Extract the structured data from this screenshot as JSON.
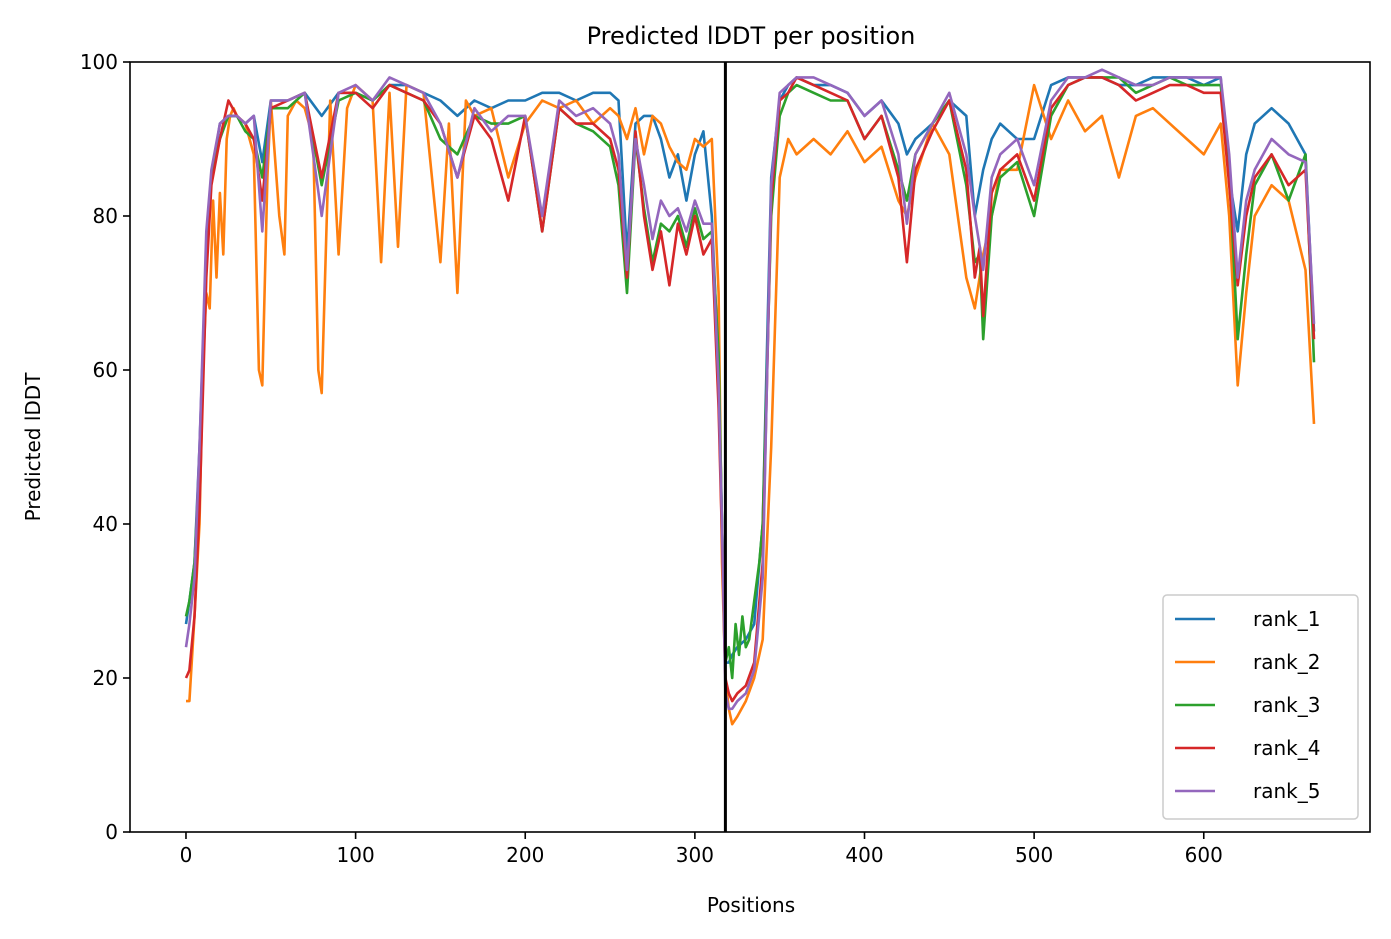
{
  "chart_data": {
    "type": "line",
    "title": "Predicted lDDT per position",
    "xlabel": "Positions",
    "ylabel": "Predicted lDDT",
    "xlim": [
      -33,
      698
    ],
    "ylim": [
      0,
      100
    ],
    "xticks": [
      "0",
      "100",
      "200",
      "300",
      "400",
      "500",
      "600"
    ],
    "yticks": [
      "0",
      "20",
      "40",
      "60",
      "80",
      "100"
    ],
    "vline_x": 318,
    "legend_position": "lower right",
    "series": [
      {
        "name": "rank_1",
        "color": "#1f77b4",
        "x": [
          0,
          2,
          5,
          8,
          12,
          15,
          20,
          25,
          30,
          35,
          40,
          45,
          50,
          60,
          70,
          80,
          90,
          100,
          110,
          120,
          130,
          140,
          150,
          160,
          170,
          180,
          190,
          200,
          210,
          220,
          230,
          240,
          250,
          255,
          260,
          265,
          270,
          275,
          280,
          285,
          290,
          295,
          300,
          305,
          310,
          314,
          316,
          318,
          320,
          322,
          325,
          330,
          335,
          340,
          345,
          350,
          355,
          360,
          370,
          380,
          390,
          400,
          410,
          420,
          425,
          430,
          440,
          450,
          460,
          465,
          470,
          475,
          480,
          490,
          500,
          510,
          520,
          530,
          540,
          550,
          560,
          570,
          580,
          590,
          600,
          610,
          615,
          620,
          625,
          630,
          640,
          650,
          660,
          665
        ],
        "y": [
          27,
          30,
          35,
          50,
          75,
          85,
          92,
          93,
          93,
          92,
          93,
          87,
          95,
          95,
          96,
          93,
          96,
          96,
          95,
          97,
          97,
          96,
          95,
          93,
          95,
          94,
          95,
          95,
          96,
          96,
          95,
          96,
          96,
          95,
          75,
          92,
          93,
          93,
          90,
          85,
          88,
          82,
          88,
          91,
          80,
          60,
          40,
          22,
          22,
          23,
          24,
          25,
          27,
          40,
          85,
          95,
          97,
          98,
          97,
          97,
          96,
          93,
          95,
          92,
          88,
          90,
          92,
          95,
          93,
          80,
          86,
          90,
          92,
          90,
          90,
          97,
          98,
          98,
          98,
          97,
          97,
          98,
          98,
          98,
          97,
          98,
          85,
          78,
          88,
          92,
          94,
          92,
          88,
          65
        ]
      },
      {
        "name": "rank_2",
        "color": "#ff7f0e",
        "x": [
          0,
          2,
          5,
          8,
          10,
          12,
          14,
          16,
          18,
          20,
          22,
          24,
          26,
          28,
          30,
          35,
          40,
          43,
          45,
          48,
          50,
          55,
          58,
          60,
          65,
          70,
          75,
          78,
          80,
          85,
          90,
          95,
          100,
          110,
          115,
          120,
          125,
          130,
          140,
          150,
          155,
          160,
          165,
          170,
          180,
          190,
          200,
          210,
          220,
          230,
          240,
          250,
          255,
          260,
          265,
          270,
          275,
          280,
          285,
          290,
          295,
          300,
          305,
          310,
          314,
          316,
          318,
          320,
          322,
          325,
          330,
          335,
          340,
          345,
          350,
          355,
          360,
          370,
          380,
          390,
          400,
          410,
          420,
          425,
          430,
          440,
          450,
          460,
          465,
          470,
          475,
          480,
          490,
          500,
          510,
          520,
          530,
          540,
          550,
          560,
          570,
          580,
          590,
          600,
          610,
          615,
          620,
          625,
          630,
          640,
          650,
          660,
          665
        ],
        "y": [
          17,
          17,
          28,
          40,
          60,
          70,
          68,
          82,
          72,
          83,
          75,
          90,
          93,
          94,
          93,
          92,
          88,
          60,
          58,
          85,
          95,
          80,
          75,
          93,
          95,
          94,
          90,
          60,
          57,
          95,
          75,
          94,
          97,
          95,
          74,
          96,
          76,
          97,
          96,
          74,
          92,
          70,
          95,
          93,
          94,
          85,
          92,
          95,
          94,
          95,
          92,
          94,
          93,
          90,
          94,
          88,
          93,
          92,
          89,
          87,
          86,
          90,
          89,
          90,
          70,
          35,
          20,
          16,
          14,
          15,
          17,
          20,
          25,
          50,
          85,
          90,
          88,
          90,
          88,
          91,
          87,
          89,
          82,
          80,
          85,
          92,
          88,
          72,
          68,
          75,
          80,
          86,
          86,
          97,
          90,
          95,
          91,
          93,
          85,
          93,
          94,
          92,
          90,
          88,
          92,
          80,
          58,
          70,
          80,
          84,
          82,
          73,
          53
        ]
      },
      {
        "name": "rank_3",
        "color": "#2ca02c",
        "x": [
          0,
          2,
          5,
          8,
          12,
          15,
          20,
          25,
          30,
          35,
          40,
          45,
          50,
          60,
          70,
          80,
          90,
          100,
          110,
          120,
          130,
          140,
          150,
          160,
          170,
          180,
          190,
          200,
          210,
          220,
          230,
          240,
          250,
          255,
          260,
          265,
          270,
          275,
          280,
          285,
          290,
          295,
          300,
          305,
          310,
          314,
          316,
          318,
          320,
          322,
          324,
          326,
          328,
          330,
          332,
          335,
          338,
          340,
          345,
          350,
          355,
          360,
          370,
          380,
          390,
          400,
          410,
          420,
          425,
          430,
          440,
          450,
          460,
          465,
          468,
          470,
          475,
          480,
          490,
          500,
          510,
          520,
          530,
          540,
          550,
          560,
          570,
          580,
          590,
          600,
          610,
          615,
          620,
          625,
          630,
          640,
          650,
          660,
          665
        ],
        "y": [
          28,
          30,
          35,
          48,
          75,
          85,
          90,
          93,
          93,
          91,
          90,
          85,
          94,
          94,
          96,
          84,
          95,
          96,
          95,
          97,
          96,
          95,
          90,
          88,
          93,
          92,
          92,
          93,
          78,
          94,
          92,
          91,
          89,
          84,
          70,
          90,
          81,
          74,
          79,
          78,
          80,
          76,
          81,
          77,
          78,
          62,
          40,
          22,
          24,
          20,
          27,
          23,
          28,
          24,
          25,
          30,
          35,
          40,
          80,
          93,
          96,
          97,
          96,
          95,
          95,
          90,
          93,
          86,
          82,
          88,
          92,
          95,
          84,
          74,
          75,
          64,
          80,
          85,
          87,
          80,
          93,
          97,
          98,
          98,
          98,
          96,
          97,
          98,
          97,
          97,
          97,
          86,
          64,
          75,
          84,
          88,
          82,
          88,
          61
        ]
      },
      {
        "name": "rank_4",
        "color": "#d62728",
        "x": [
          0,
          2,
          5,
          8,
          12,
          15,
          20,
          25,
          30,
          35,
          40,
          45,
          50,
          60,
          70,
          80,
          90,
          100,
          110,
          120,
          130,
          140,
          150,
          160,
          170,
          180,
          190,
          200,
          210,
          220,
          230,
          240,
          250,
          255,
          260,
          265,
          270,
          275,
          280,
          285,
          290,
          295,
          300,
          305,
          310,
          314,
          316,
          318,
          320,
          322,
          325,
          330,
          335,
          340,
          345,
          350,
          355,
          360,
          370,
          380,
          390,
          400,
          410,
          420,
          425,
          430,
          440,
          450,
          460,
          465,
          468,
          470,
          475,
          480,
          490,
          500,
          510,
          520,
          530,
          540,
          550,
          560,
          570,
          580,
          590,
          600,
          610,
          615,
          620,
          625,
          630,
          640,
          650,
          660,
          665
        ],
        "y": [
          20,
          21,
          28,
          42,
          72,
          84,
          90,
          95,
          93,
          92,
          90,
          82,
          94,
          95,
          96,
          85,
          96,
          96,
          94,
          97,
          96,
          95,
          92,
          85,
          93,
          90,
          82,
          93,
          78,
          94,
          92,
          92,
          90,
          86,
          72,
          91,
          80,
          73,
          78,
          71,
          79,
          75,
          80,
          75,
          77,
          55,
          38,
          20,
          18,
          17,
          18,
          19,
          22,
          35,
          82,
          95,
          96,
          98,
          97,
          96,
          95,
          90,
          93,
          85,
          74,
          86,
          91,
          95,
          86,
          72,
          76,
          67,
          83,
          86,
          88,
          82,
          94,
          97,
          98,
          98,
          97,
          95,
          96,
          97,
          97,
          96,
          96,
          84,
          71,
          80,
          85,
          88,
          84,
          86,
          64
        ]
      },
      {
        "name": "rank_5",
        "color": "#9467bd",
        "x": [
          0,
          2,
          5,
          8,
          12,
          15,
          20,
          25,
          30,
          35,
          40,
          45,
          50,
          60,
          70,
          80,
          90,
          100,
          110,
          120,
          130,
          140,
          150,
          160,
          170,
          180,
          190,
          200,
          210,
          220,
          230,
          240,
          250,
          255,
          260,
          265,
          270,
          275,
          280,
          285,
          290,
          295,
          300,
          305,
          310,
          314,
          316,
          318,
          320,
          322,
          325,
          330,
          335,
          340,
          345,
          350,
          355,
          360,
          370,
          380,
          390,
          400,
          410,
          420,
          425,
          430,
          440,
          450,
          460,
          465,
          468,
          470,
          475,
          480,
          490,
          500,
          510,
          520,
          530,
          540,
          550,
          560,
          570,
          580,
          590,
          600,
          610,
          615,
          620,
          625,
          630,
          640,
          650,
          660,
          665
        ],
        "y": [
          24,
          27,
          33,
          50,
          78,
          86,
          92,
          93,
          93,
          92,
          93,
          78,
          95,
          95,
          96,
          80,
          96,
          97,
          95,
          98,
          97,
          96,
          92,
          85,
          94,
          91,
          93,
          93,
          80,
          95,
          93,
          94,
          92,
          88,
          73,
          90,
          84,
          77,
          82,
          80,
          81,
          78,
          82,
          79,
          79,
          58,
          40,
          18,
          16,
          16,
          17,
          18,
          21,
          33,
          84,
          96,
          97,
          98,
          98,
          97,
          96,
          93,
          95,
          88,
          79,
          88,
          92,
          96,
          88,
          80,
          76,
          73,
          85,
          88,
          90,
          84,
          95,
          98,
          98,
          99,
          98,
          97,
          97,
          98,
          98,
          98,
          98,
          88,
          72,
          82,
          86,
          90,
          88,
          87,
          66
        ]
      }
    ]
  }
}
